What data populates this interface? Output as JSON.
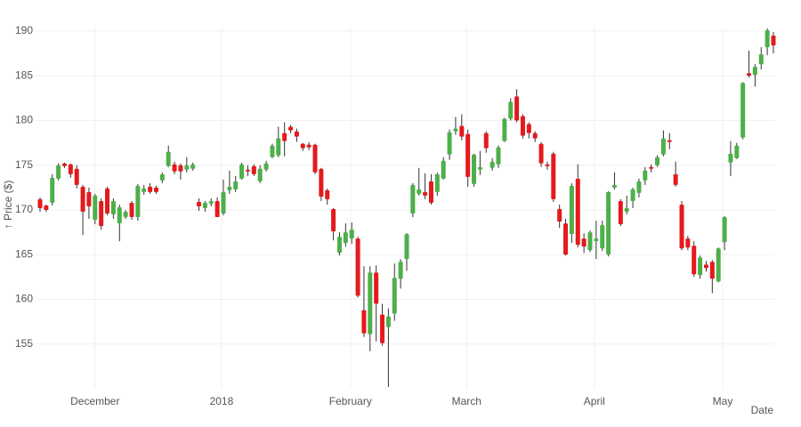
{
  "chart_data": {
    "type": "candlestick",
    "x_label": "Date",
    "y_label": "↑ Price ($)",
    "up_color": "#4daf4a",
    "down_color": "#e41a1c",
    "wick_color": "#333333",
    "grid": true,
    "ylim": [
      150,
      190.5
    ],
    "yticks": [
      155,
      160,
      165,
      170,
      175,
      180,
      185,
      190
    ],
    "xlim": [
      0,
      120
    ],
    "xticks": [
      {
        "value": 9,
        "label": "December"
      },
      {
        "value": 29.7,
        "label": "2018"
      },
      {
        "value": 50.8,
        "label": "February"
      },
      {
        "value": 69.8,
        "label": "March"
      },
      {
        "value": 90.7,
        "label": "April"
      },
      {
        "value": 111.7,
        "label": "May"
      }
    ],
    "categories": [
      null,
      null,
      null,
      null,
      null,
      null,
      null,
      null,
      null,
      null,
      null,
      null,
      null,
      null,
      null,
      null,
      null,
      null,
      null,
      null,
      null,
      null,
      null,
      null,
      null,
      null,
      null,
      null,
      null,
      null,
      null,
      null,
      null,
      null,
      null,
      null,
      null,
      null,
      null,
      null,
      null,
      null,
      null,
      null,
      null,
      null,
      null,
      null,
      null,
      null,
      null,
      null,
      null,
      null,
      null,
      null,
      null,
      null,
      null,
      null,
      null,
      null,
      null,
      null,
      null,
      null,
      null,
      null,
      null,
      null,
      null,
      null,
      null,
      null,
      null,
      null,
      null,
      null,
      null,
      null,
      null,
      null,
      null,
      null,
      null,
      null,
      null,
      null,
      null,
      null,
      null,
      null,
      null,
      null,
      null,
      null,
      null,
      null,
      null,
      null,
      null,
      null,
      null,
      null,
      null,
      null,
      null,
      null,
      null,
      null,
      null,
      null,
      null,
      null,
      null,
      null,
      null,
      null,
      null,
      null,
      null
    ],
    "open": [
      171.2,
      170.5,
      170.8,
      173.5,
      175.2,
      175.1,
      174.6,
      172.6,
      172,
      168.9,
      171,
      172.4,
      169.5,
      168.5,
      169.2,
      170.8,
      169.2,
      172,
      172.6,
      172.5,
      173.3,
      174.9,
      175.1,
      175,
      174.5,
      174.6,
      170.9,
      170.2,
      170.7,
      171,
      169.6,
      172.2,
      172.3,
      173.5,
      174.5,
      174.9,
      173.2,
      174.5,
      175.9,
      176.1,
      178.6,
      179.3,
      178.8,
      177.4,
      177.3,
      177.3,
      174.6,
      172.2,
      170.1,
      165.2,
      166.3,
      166.8,
      166.8,
      158.8,
      156.1,
      163,
      158.3,
      156.9,
      158.4,
      162.3,
      164.5,
      169.6,
      171.8,
      172,
      173.2,
      172,
      173.5,
      176.2,
      178.8,
      179.4,
      178.5,
      172.9,
      174.5,
      178.6,
      174.7,
      175.1,
      177.7,
      180.2,
      182.7,
      180.5,
      179.6,
      178.6,
      177.4,
      175.1,
      176.3,
      170.1,
      168.5,
      167.3,
      173.5,
      166.8,
      165.5,
      166.5,
      165.7,
      165,
      172.5,
      171,
      169.8,
      171,
      171.9,
      173.3,
      174.8,
      175,
      176.2,
      177.8,
      174,
      170.6,
      166.8,
      166,
      162.7,
      163.9,
      164.2,
      162,
      166.4,
      175.3,
      175.8,
      178.1,
      185.3,
      185.1,
      186.3,
      188.2,
      189.5
    ],
    "high": [
      171.4,
      170.6,
      174,
      175.2,
      175.3,
      175.2,
      175,
      172.8,
      172.5,
      171.8,
      171.3,
      172.6,
      171.3,
      170.6,
      170,
      171,
      172.9,
      172.8,
      173,
      172.7,
      174.2,
      177.2,
      175.4,
      175.2,
      175.9,
      175.3,
      171.3,
      171,
      171.3,
      171.4,
      173.4,
      174.4,
      173.8,
      175.3,
      175,
      175.1,
      175,
      175.5,
      177.4,
      179.3,
      179.8,
      179.5,
      179.1,
      177.5,
      177.6,
      177.4,
      174.7,
      172.4,
      170.2,
      167.5,
      168.5,
      168.6,
      167,
      163.7,
      163.7,
      163.8,
      159.5,
      159,
      164,
      164.5,
      167.4,
      173,
      174.7,
      174.1,
      174,
      174.2,
      175.9,
      179,
      180.4,
      180.7,
      179,
      176.3,
      176.6,
      178.8,
      175.8,
      177.2,
      180.3,
      182.5,
      183.5,
      180.7,
      179.8,
      178.8,
      177.6,
      175.4,
      176.5,
      170.6,
      169,
      173,
      175.1,
      167.4,
      167.7,
      168.8,
      168.8,
      172.1,
      174.2,
      171.2,
      171.6,
      172.5,
      173.5,
      174.8,
      175.1,
      176.1,
      178.9,
      178.6,
      175.4,
      171,
      167.1,
      166.5,
      164.9,
      164.3,
      164.4,
      165.8,
      169.3,
      177.7,
      177.5,
      184.3,
      187.8,
      186.3,
      188.2,
      190.3,
      189.9
    ],
    "low": [
      169.8,
      169.8,
      170.5,
      173.3,
      174.7,
      173.6,
      172.4,
      167.2,
      169,
      168.4,
      167.8,
      169.4,
      169,
      166.5,
      169,
      168.9,
      168.8,
      171.7,
      171.8,
      171.8,
      173,
      174.8,
      174,
      173.4,
      174.2,
      174.4,
      169.9,
      169.8,
      170.4,
      169.2,
      169.4,
      171.8,
      172,
      173.4,
      173.8,
      173.8,
      173,
      174.3,
      175.8,
      175.9,
      176,
      178.6,
      177.6,
      176.6,
      176.7,
      174,
      171,
      170.6,
      166.6,
      164.9,
      165.9,
      166.2,
      160.2,
      155.8,
      154.2,
      155.3,
      154.8,
      150.2,
      157.6,
      161.2,
      163.2,
      169.2,
      171.6,
      171.2,
      170.6,
      171.6,
      173.4,
      175.6,
      178.4,
      177.8,
      172.6,
      172.6,
      173.9,
      176.4,
      174.4,
      174.7,
      177.6,
      180,
      179.8,
      178,
      178,
      177.6,
      174.8,
      174.5,
      170.9,
      168,
      164.9,
      166.3,
      165.8,
      165.2,
      165.3,
      164.5,
      165.4,
      164.8,
      172.3,
      168.2,
      169.5,
      170.2,
      171.4,
      172.8,
      174.2,
      174.8,
      176,
      176.8,
      172.6,
      165.5,
      165.5,
      162.5,
      162.3,
      163.1,
      160.7,
      161.9,
      165.5,
      173.8,
      175.7,
      177.9,
      184.8,
      183.8,
      185.7,
      187.3,
      187.5
    ],
    "close": [
      170.2,
      170,
      173.6,
      175,
      174.9,
      174,
      172.8,
      169.8,
      170.4,
      171.6,
      168.2,
      169.6,
      171,
      170.3,
      169.8,
      169.2,
      172.7,
      172.4,
      172,
      172,
      174,
      176.5,
      174.3,
      174.3,
      175,
      175.1,
      170.4,
      170.8,
      171,
      169.2,
      172,
      172.6,
      173.2,
      175.1,
      174.3,
      174,
      174.6,
      175.2,
      177.2,
      178,
      177.7,
      178.9,
      178.2,
      176.9,
      177,
      174.2,
      171.5,
      171.2,
      167.6,
      167,
      167.5,
      167.8,
      160.4,
      156.2,
      163,
      159.5,
      155.1,
      158.1,
      162.4,
      164.2,
      167.3,
      172.8,
      172.3,
      171.6,
      170.8,
      174,
      175.5,
      178.7,
      179.1,
      178.2,
      173.7,
      176.2,
      174.8,
      176.9,
      175.4,
      177,
      180.2,
      182.1,
      180,
      178.3,
      178.6,
      178,
      175.2,
      174.9,
      171.2,
      168.7,
      165,
      172.7,
      166.1,
      165.9,
      167.5,
      166.8,
      168.3,
      172,
      172.8,
      168.4,
      170.2,
      172.3,
      173.2,
      174.4,
      174.6,
      175.9,
      178,
      177.6,
      172.8,
      165.7,
      165.8,
      162.8,
      164.7,
      163.5,
      162.3,
      165.7,
      169.2,
      176.3,
      177.2,
      184.2,
      185,
      186,
      187.4,
      190.1,
      188.4
    ]
  }
}
